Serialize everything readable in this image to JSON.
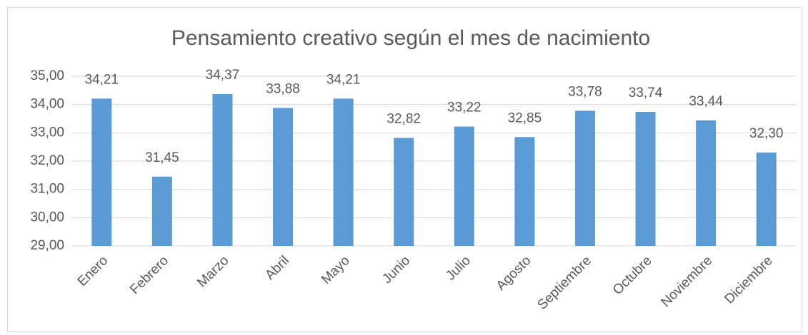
{
  "chart_data": {
    "type": "bar",
    "title": "Pensamiento creativo según el mes de nacimiento",
    "categories": [
      "Enero",
      "Febrero",
      "Marzo",
      "Abril",
      "Mayo",
      "Junio",
      "Julio",
      "Agosto",
      "Septiembre",
      "Octubre",
      "Noviembre",
      "Diciembre"
    ],
    "values": [
      34.21,
      31.45,
      34.37,
      33.88,
      34.21,
      32.82,
      33.22,
      32.85,
      33.78,
      33.74,
      33.44,
      32.3
    ],
    "value_labels": [
      "34,21",
      "31,45",
      "34,37",
      "33,88",
      "34,21",
      "32,82",
      "33,22",
      "32,85",
      "33,78",
      "33,74",
      "33,44",
      "32,30"
    ],
    "color": "#5b9bd5",
    "ylim": [
      29,
      35
    ],
    "yticks": [
      {
        "value": 29,
        "label": "29,00"
      },
      {
        "value": 30,
        "label": "30,00"
      },
      {
        "value": 31,
        "label": "31,00"
      },
      {
        "value": 32,
        "label": "32,00"
      },
      {
        "value": 33,
        "label": "33,00"
      },
      {
        "value": 34,
        "label": "34,00"
      },
      {
        "value": 35,
        "label": "35,00"
      }
    ],
    "grid": true
  }
}
